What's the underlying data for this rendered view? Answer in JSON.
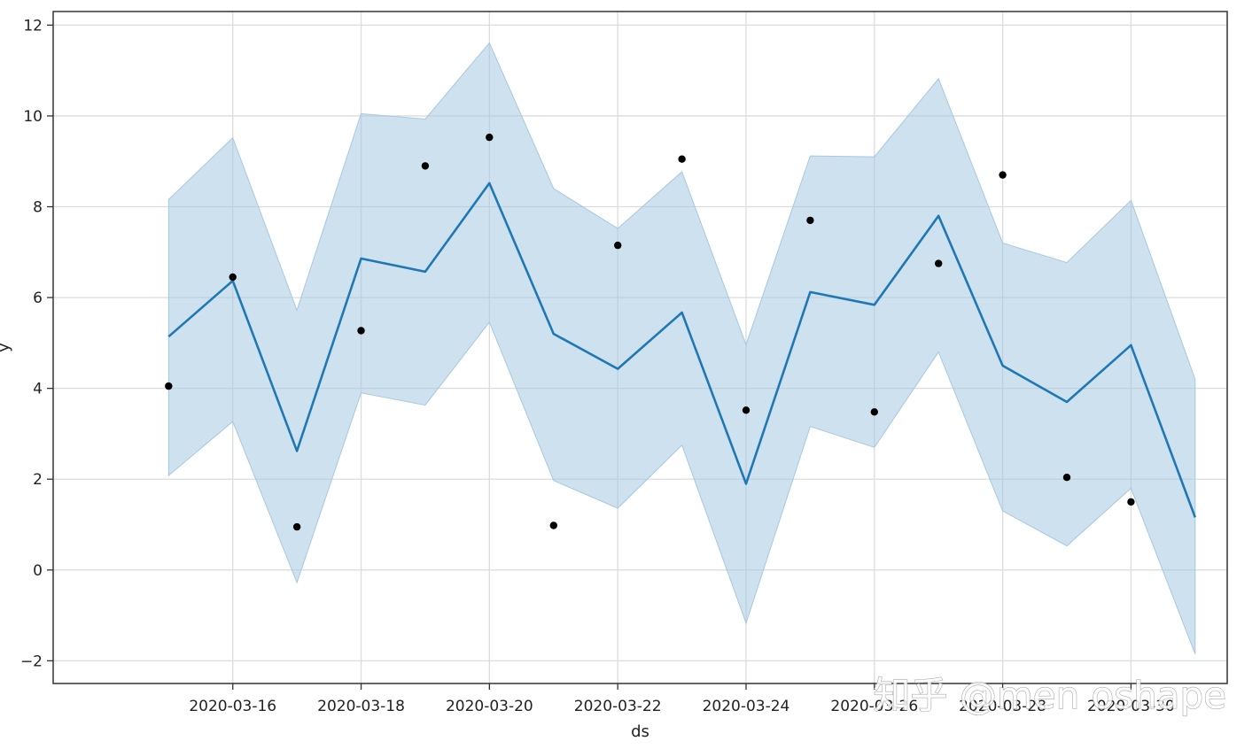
{
  "chart_data": {
    "type": "line",
    "title": "",
    "xlabel": "ds",
    "ylabel": "y",
    "ylim": [
      -2.5,
      12.3
    ],
    "yticks": [
      -2,
      0,
      2,
      4,
      6,
      8,
      10,
      12
    ],
    "ytick_labels": [
      "−2",
      "0",
      "2",
      "4",
      "6",
      "8",
      "10",
      "12"
    ],
    "xlim": [
      "2020-03-13.2",
      "2020-03-31.5"
    ],
    "xtick_days": [
      16,
      18,
      20,
      22,
      24,
      26,
      28,
      30
    ],
    "xtick_labels": [
      "2020-03-16",
      "2020-03-18",
      "2020-03-20",
      "2020-03-22",
      "2020-03-24",
      "2020-03-26",
      "2020-03-28",
      "2020-03-30"
    ],
    "grid": true,
    "colors": {
      "forecast_line": "#1f77b4",
      "interval_fill": "#a6c8e0",
      "observed_points": "#000000",
      "grid": "#dcdcdc",
      "frame": "#333333"
    },
    "series": [
      {
        "name": "observed",
        "kind": "scatter",
        "x": [
          "2020-03-15",
          "2020-03-16",
          "2020-03-17",
          "2020-03-18",
          "2020-03-19",
          "2020-03-20",
          "2020-03-21",
          "2020-03-22",
          "2020-03-23",
          "2020-03-24",
          "2020-03-25",
          "2020-03-26",
          "2020-03-27",
          "2020-03-28",
          "2020-03-29",
          "2020-03-30"
        ],
        "values": [
          4.05,
          6.45,
          0.95,
          5.27,
          8.9,
          9.53,
          0.98,
          7.15,
          9.05,
          3.52,
          7.7,
          3.48,
          6.75,
          8.7,
          2.04,
          1.5
        ]
      },
      {
        "name": "yhat",
        "kind": "line",
        "x": [
          "2020-03-15",
          "2020-03-16",
          "2020-03-17",
          "2020-03-18",
          "2020-03-19",
          "2020-03-20",
          "2020-03-21",
          "2020-03-22",
          "2020-03-23",
          "2020-03-24",
          "2020-03-25",
          "2020-03-26",
          "2020-03-27",
          "2020-03-28",
          "2020-03-29",
          "2020-03-30",
          "2020-03-31"
        ],
        "values": [
          5.14,
          6.37,
          2.62,
          6.86,
          6.57,
          8.52,
          5.2,
          4.43,
          5.67,
          1.9,
          6.12,
          5.84,
          7.8,
          4.5,
          3.7,
          4.95,
          1.16
        ]
      },
      {
        "name": "yhat_lower",
        "kind": "band-lower",
        "x": [
          "2020-03-15",
          "2020-03-16",
          "2020-03-17",
          "2020-03-18",
          "2020-03-19",
          "2020-03-20",
          "2020-03-21",
          "2020-03-22",
          "2020-03-23",
          "2020-03-24",
          "2020-03-25",
          "2020-03-26",
          "2020-03-27",
          "2020-03-28",
          "2020-03-29",
          "2020-03-30",
          "2020-03-31"
        ],
        "values": [
          2.08,
          3.27,
          -0.28,
          3.9,
          3.63,
          5.46,
          1.97,
          1.36,
          2.75,
          -1.17,
          3.16,
          2.7,
          4.8,
          1.3,
          0.53,
          1.8,
          -1.85
        ]
      },
      {
        "name": "yhat_upper",
        "kind": "band-upper",
        "x": [
          "2020-03-15",
          "2020-03-16",
          "2020-03-17",
          "2020-03-18",
          "2020-03-19",
          "2020-03-20",
          "2020-03-21",
          "2020-03-22",
          "2020-03-23",
          "2020-03-24",
          "2020-03-25",
          "2020-03-26",
          "2020-03-27",
          "2020-03-28",
          "2020-03-29",
          "2020-03-30",
          "2020-03-31"
        ],
        "values": [
          8.16,
          9.52,
          5.72,
          10.05,
          9.93,
          11.61,
          8.4,
          7.52,
          8.77,
          4.96,
          9.12,
          9.1,
          10.82,
          7.2,
          6.77,
          8.14,
          4.2
        ]
      }
    ]
  },
  "watermark": {
    "text": "知乎 @men oshape"
  }
}
